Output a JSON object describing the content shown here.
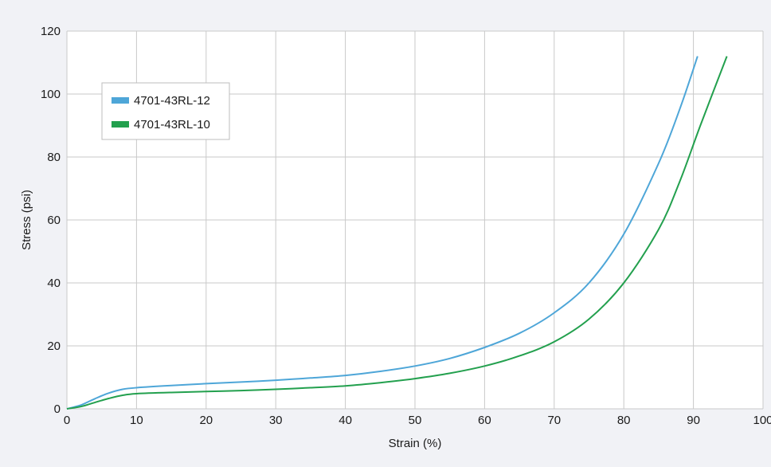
{
  "chart_data": {
    "type": "line",
    "xlabel": "Strain (%)",
    "ylabel": "Stress (psi)",
    "xlim": [
      0,
      100
    ],
    "ylim": [
      0,
      120
    ],
    "xticks": [
      0,
      10,
      20,
      30,
      40,
      50,
      60,
      70,
      80,
      90,
      100
    ],
    "yticks": [
      0,
      20,
      40,
      60,
      80,
      100,
      120
    ],
    "grid": true,
    "legend_position": "upper-left",
    "series": [
      {
        "name": "4701-43RL-12",
        "color": "#4ea6d8",
        "points": [
          [
            0,
            0
          ],
          [
            2,
            1.2
          ],
          [
            4,
            3.2
          ],
          [
            6,
            5.0
          ],
          [
            8,
            6.2
          ],
          [
            10,
            6.7
          ],
          [
            15,
            7.4
          ],
          [
            20,
            8.0
          ],
          [
            25,
            8.5
          ],
          [
            30,
            9.1
          ],
          [
            35,
            9.8
          ],
          [
            40,
            10.6
          ],
          [
            45,
            11.9
          ],
          [
            50,
            13.6
          ],
          [
            55,
            16.0
          ],
          [
            60,
            19.5
          ],
          [
            65,
            24.0
          ],
          [
            70,
            30.5
          ],
          [
            75,
            40.0
          ],
          [
            80,
            55.5
          ],
          [
            85,
            78.0
          ],
          [
            88,
            95.0
          ],
          [
            90.6,
            112.0
          ]
        ]
      },
      {
        "name": "4701-43RL-10",
        "color": "#23a04e",
        "points": [
          [
            0,
            0
          ],
          [
            2,
            0.7
          ],
          [
            4,
            2.0
          ],
          [
            6,
            3.3
          ],
          [
            8,
            4.3
          ],
          [
            10,
            4.8
          ],
          [
            15,
            5.2
          ],
          [
            20,
            5.5
          ],
          [
            25,
            5.8
          ],
          [
            30,
            6.2
          ],
          [
            35,
            6.7
          ],
          [
            40,
            7.3
          ],
          [
            45,
            8.3
          ],
          [
            50,
            9.6
          ],
          [
            55,
            11.3
          ],
          [
            60,
            13.6
          ],
          [
            65,
            16.8
          ],
          [
            70,
            21.3
          ],
          [
            75,
            28.5
          ],
          [
            80,
            40.0
          ],
          [
            85,
            57.0
          ],
          [
            88,
            72.0
          ],
          [
            91,
            90.0
          ],
          [
            94.8,
            112.0
          ]
        ]
      }
    ]
  }
}
